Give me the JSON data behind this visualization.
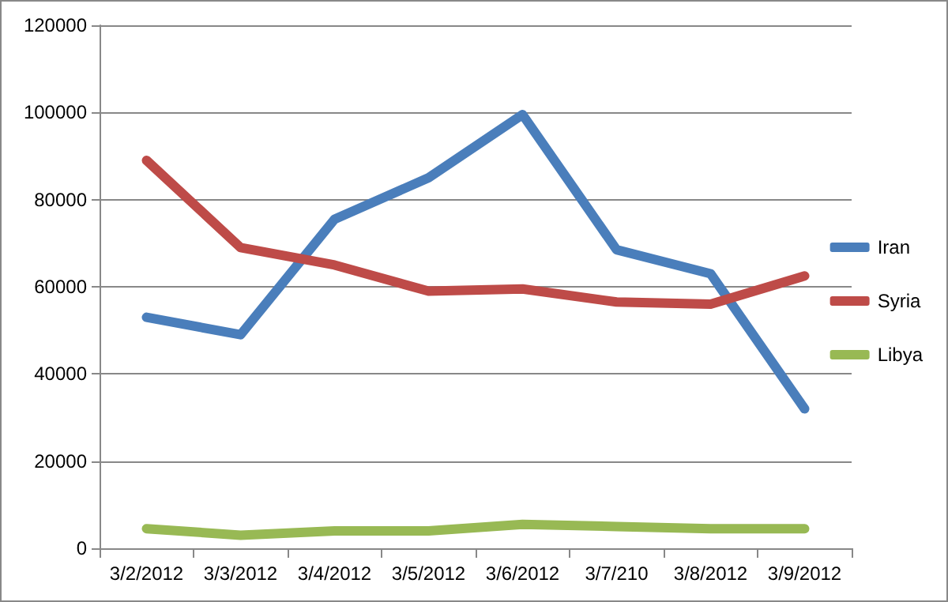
{
  "chart_data": {
    "type": "line",
    "categories": [
      "3/2/2012",
      "3/3/2012",
      "3/4/2012",
      "3/5/2012",
      "3/6/2012",
      "3/7/210",
      "3/8/2012",
      "3/9/2012"
    ],
    "series": [
      {
        "name": "Iran",
        "color": "#4a7ebb",
        "values": [
          53000,
          49000,
          75500,
          85000,
          99500,
          68500,
          63000,
          32000
        ]
      },
      {
        "name": "Syria",
        "color": "#be4b48",
        "values": [
          89000,
          69000,
          65000,
          59000,
          59500,
          56500,
          56000,
          62500
        ]
      },
      {
        "name": "Libya",
        "color": "#98b954",
        "values": [
          4500,
          3000,
          4000,
          4000,
          5500,
          5000,
          4500,
          4500
        ]
      }
    ],
    "ylim": [
      0,
      120000
    ],
    "yticks": [
      0,
      20000,
      40000,
      60000,
      80000,
      100000,
      120000
    ],
    "grid": "y",
    "legend": "right",
    "marker": "none",
    "line_style": "solid"
  }
}
